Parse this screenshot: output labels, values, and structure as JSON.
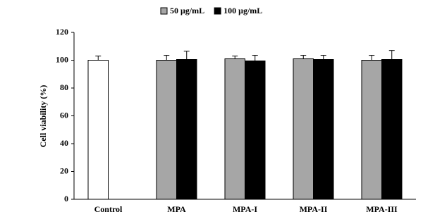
{
  "chart_data": {
    "type": "bar",
    "y_label": "Cell viability (%)",
    "categories": [
      "Control",
      "MPA",
      "MPA-I",
      "MPA-II",
      "MPA-III"
    ],
    "control": {
      "value": 100,
      "error": 3,
      "color": "#ffffff"
    },
    "series": [
      {
        "name": "50 μg/mL",
        "color": "#a6a6a6",
        "values": [
          null,
          100,
          101,
          101,
          100
        ],
        "errors": [
          null,
          3.5,
          2,
          2.5,
          3.5
        ]
      },
      {
        "name": "100 μg/mL",
        "color": "#000000",
        "values": [
          null,
          100.5,
          99.5,
          100.5,
          100.5
        ],
        "errors": [
          null,
          6,
          4,
          3,
          6.5
        ]
      }
    ],
    "ylim": [
      0,
      120
    ],
    "yticks": [
      0,
      20,
      40,
      60,
      80,
      100,
      120
    ],
    "grid": false
  }
}
